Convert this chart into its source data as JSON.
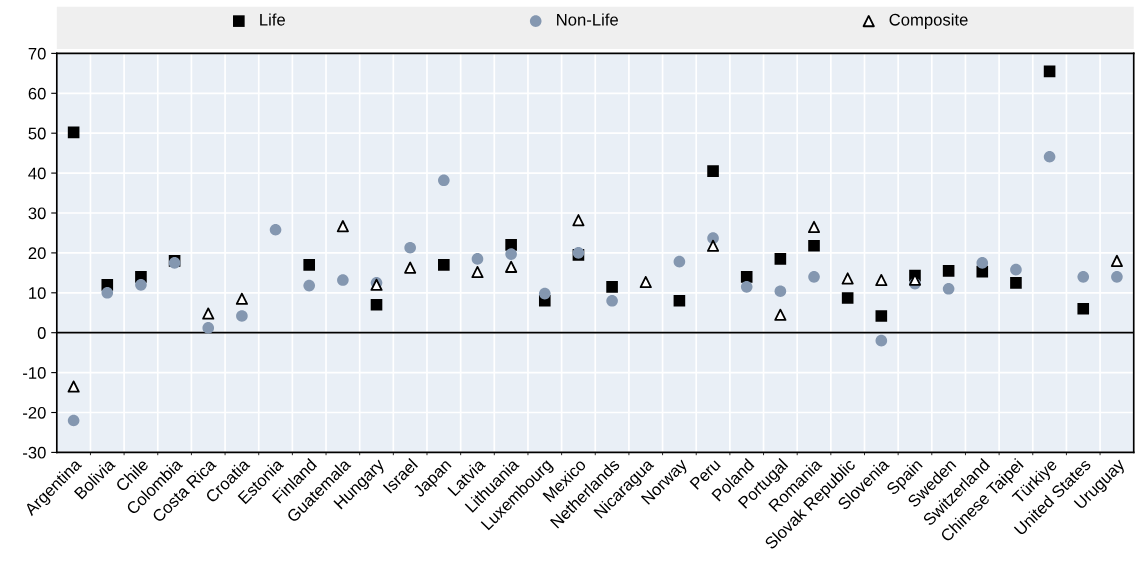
{
  "chart_data": {
    "type": "scatter",
    "categories": [
      "Argentina",
      "Bolivia",
      "Chile",
      "Colombia",
      "Costa Rica",
      "Croatia",
      "Estonia",
      "Finland",
      "Guatemala",
      "Hungary",
      "Israel",
      "Japan",
      "Latvia",
      "Lithuania",
      "Luxembourg",
      "Mexico",
      "Netherlands",
      "Nicaragua",
      "Norway",
      "Peru",
      "Poland",
      "Portugal",
      "Romania",
      "Slovak Republic",
      "Slovenia",
      "Spain",
      "Sweden",
      "Switzerland",
      "Chinese Taipei",
      "Türkiye",
      "United States",
      "Uruguay"
    ],
    "series": [
      {
        "name": "Life",
        "color": "#000000",
        "marker": "square",
        "values": [
          50.2,
          12,
          14,
          18,
          null,
          null,
          null,
          17,
          null,
          7,
          null,
          17,
          null,
          22,
          8,
          19.5,
          11.5,
          null,
          8,
          40.5,
          14,
          18.5,
          21.8,
          8.7,
          4.2,
          14.3,
          15.5,
          15.3,
          12.5,
          65.5,
          6,
          null
        ]
      },
      {
        "name": "Non-Life",
        "color": "#8497b0",
        "marker": "circle",
        "values": [
          -22,
          10,
          12,
          17.5,
          1.2,
          4.2,
          25.8,
          11.8,
          13.2,
          12.5,
          21.3,
          38.2,
          18.5,
          19.7,
          9.8,
          20,
          8,
          null,
          17.8,
          23.7,
          11.5,
          10.4,
          14,
          null,
          -2,
          12.3,
          11,
          17.5,
          15.8,
          44.1,
          14,
          14
        ]
      },
      {
        "name": "Composite",
        "color": "#000000",
        "marker": "triangle",
        "values": [
          -13.5,
          null,
          null,
          null,
          4.8,
          8.5,
          null,
          null,
          26.7,
          12,
          16.3,
          null,
          15.2,
          16.5,
          null,
          28.2,
          null,
          12.7,
          null,
          21.8,
          null,
          4.5,
          26.5,
          13.6,
          13.2,
          13.3,
          null,
          null,
          null,
          null,
          null,
          18
        ]
      }
    ],
    "ylim": [
      -30,
      70
    ],
    "yticks": [
      -30,
      -20,
      -10,
      0,
      10,
      20,
      30,
      40,
      50,
      60,
      70
    ],
    "grid": true,
    "legend": "top"
  }
}
